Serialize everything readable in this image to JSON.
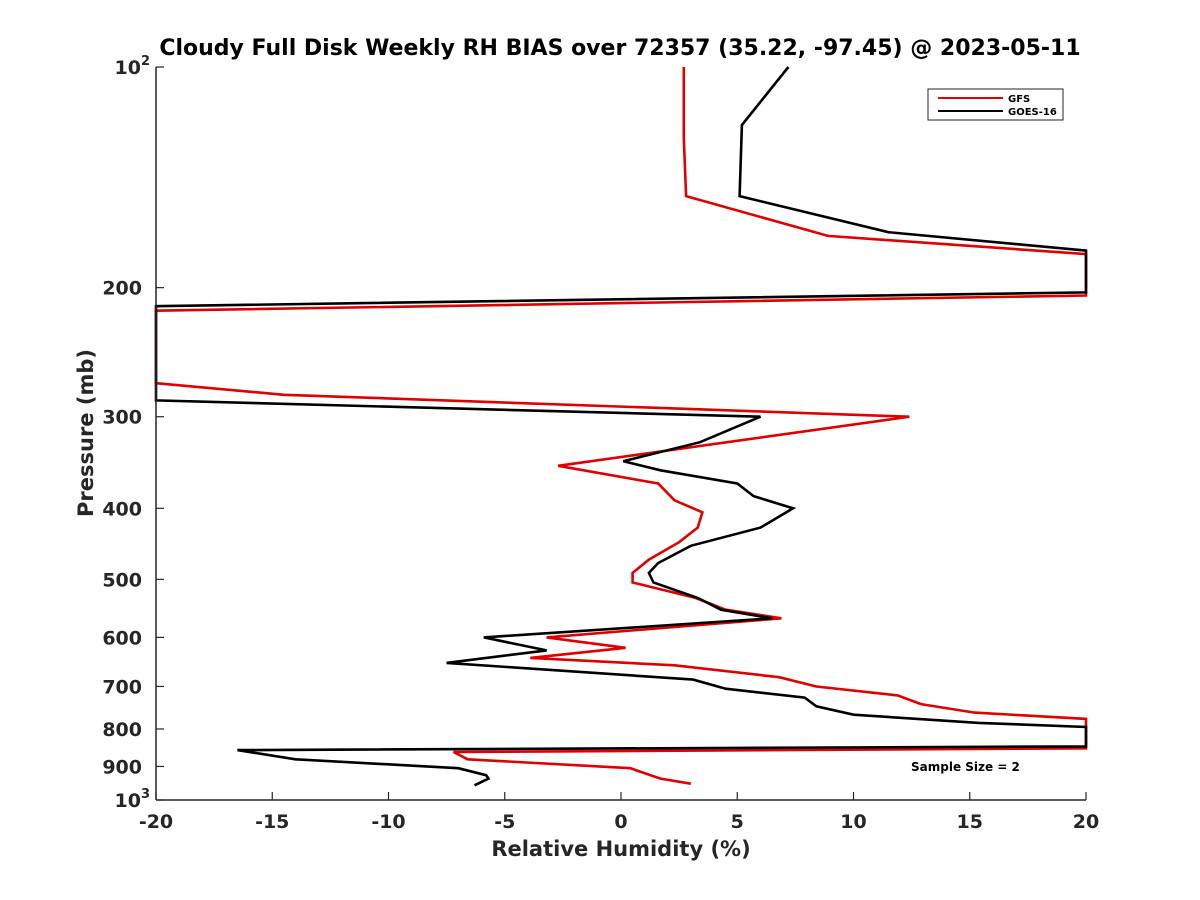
{
  "chart_data": {
    "type": "line",
    "title": "Cloudy Full Disk Weekly RH BIAS over 72357 (35.22, -97.45) @ 2023-05-11",
    "xlabel": "Relative Humidity (%)",
    "ylabel": "Pressure (mb)",
    "xlim": [
      -20,
      20
    ],
    "ylim": [
      100,
      1000
    ],
    "y_scale": "log",
    "y_reversed": true,
    "grid": false,
    "legend_position": "top-right",
    "x_ticks": [
      "-20",
      "-15",
      "-10",
      "-5",
      "0",
      "5",
      "10",
      "15",
      "20"
    ],
    "x_tick_values": [
      -20,
      -15,
      -10,
      -5,
      0,
      5,
      10,
      15,
      20
    ],
    "y_ticks": [
      {
        "value": 100,
        "base": "10",
        "exp": "2"
      },
      {
        "value": 200,
        "label": "200"
      },
      {
        "value": 300,
        "label": "300"
      },
      {
        "value": 400,
        "label": "400"
      },
      {
        "value": 500,
        "label": "500"
      },
      {
        "value": 600,
        "label": "600"
      },
      {
        "value": 700,
        "label": "700"
      },
      {
        "value": 800,
        "label": "800"
      },
      {
        "value": 900,
        "label": "900"
      },
      {
        "value": 1000,
        "base": "10",
        "exp": "3"
      }
    ],
    "annotation": "Sample Size = 2",
    "series": [
      {
        "name": "GFS",
        "color": "#e00000",
        "points": [
          [
            2.7,
            100
          ],
          [
            2.7,
            125
          ],
          [
            2.8,
            150
          ],
          [
            8.9,
            170
          ],
          [
            20.0,
            180
          ],
          [
            20.0,
            205
          ],
          [
            -20.0,
            215
          ],
          [
            -20.0,
            270
          ],
          [
            -14.5,
            280
          ],
          [
            12.4,
            300
          ],
          [
            -2.7,
            350
          ],
          [
            1.6,
            370
          ],
          [
            2.3,
            390
          ],
          [
            3.5,
            405
          ],
          [
            3.3,
            425
          ],
          [
            2.5,
            445
          ],
          [
            1.2,
            470
          ],
          [
            0.5,
            490
          ],
          [
            0.5,
            505
          ],
          [
            3.2,
            530
          ],
          [
            4.5,
            550
          ],
          [
            6.9,
            565
          ],
          [
            -3.2,
            600
          ],
          [
            0.2,
            620
          ],
          [
            -3.9,
            640
          ],
          [
            2.3,
            655
          ],
          [
            6.8,
            680
          ],
          [
            8.4,
            700
          ],
          [
            11.9,
            720
          ],
          [
            12.9,
            740
          ],
          [
            15.2,
            760
          ],
          [
            20.0,
            775
          ],
          [
            20.0,
            850
          ],
          [
            -7.2,
            860
          ],
          [
            -6.6,
            880
          ],
          [
            0.4,
            905
          ],
          [
            1.7,
            935
          ],
          [
            3.0,
            950
          ]
        ]
      },
      {
        "name": "GOES-16",
        "color": "#000000",
        "points": [
          [
            7.2,
            100
          ],
          [
            5.2,
            120
          ],
          [
            5.1,
            150
          ],
          [
            11.5,
            168
          ],
          [
            20.0,
            178
          ],
          [
            20.0,
            203
          ],
          [
            -20.0,
            212
          ],
          [
            -20.0,
            285
          ],
          [
            6.0,
            300
          ],
          [
            3.4,
            325
          ],
          [
            0.1,
            345
          ],
          [
            1.7,
            355
          ],
          [
            5.0,
            370
          ],
          [
            5.7,
            385
          ],
          [
            7.4,
            400
          ],
          [
            6.0,
            425
          ],
          [
            3.0,
            450
          ],
          [
            1.6,
            475
          ],
          [
            1.2,
            490
          ],
          [
            1.4,
            505
          ],
          [
            3.3,
            530
          ],
          [
            4.3,
            550
          ],
          [
            6.5,
            565
          ],
          [
            -5.9,
            600
          ],
          [
            -3.2,
            625
          ],
          [
            -7.5,
            650
          ],
          [
            3.1,
            685
          ],
          [
            4.5,
            705
          ],
          [
            7.9,
            725
          ],
          [
            8.4,
            745
          ],
          [
            10.0,
            765
          ],
          [
            15.4,
            785
          ],
          [
            20.0,
            795
          ],
          [
            20.0,
            845
          ],
          [
            -16.5,
            855
          ],
          [
            -14.0,
            880
          ],
          [
            -7.0,
            905
          ],
          [
            -5.8,
            925
          ],
          [
            -5.7,
            935
          ],
          [
            -6.3,
            955
          ]
        ]
      }
    ]
  }
}
